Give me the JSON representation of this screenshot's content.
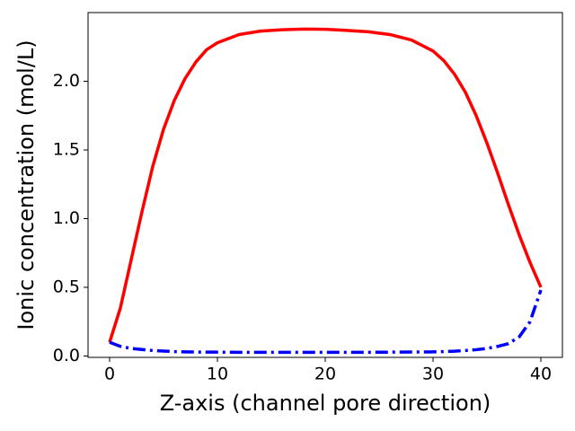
{
  "chart_data": {
    "type": "line",
    "xlabel": "Z-axis (channel pore direction)",
    "ylabel": "Ionic concentration (mol/L)",
    "x": [
      0,
      1,
      2,
      3,
      4,
      5,
      6,
      7,
      8,
      9,
      10,
      12,
      14,
      16,
      18,
      20,
      22,
      24,
      26,
      28,
      30,
      31,
      32,
      33,
      34,
      35,
      36,
      37,
      38,
      39,
      40
    ],
    "series": [
      {
        "color": "#ff0000",
        "linestyle": "solid",
        "values": [
          0.1,
          0.35,
          0.7,
          1.05,
          1.38,
          1.65,
          1.86,
          2.02,
          2.14,
          2.23,
          2.28,
          2.34,
          2.365,
          2.375,
          2.38,
          2.378,
          2.37,
          2.36,
          2.34,
          2.3,
          2.22,
          2.15,
          2.05,
          1.92,
          1.75,
          1.55,
          1.33,
          1.1,
          0.88,
          0.68,
          0.5
        ]
      },
      {
        "color": "#0000ff",
        "linestyle": "dashdot",
        "values": [
          0.1,
          0.07,
          0.055,
          0.047,
          0.04,
          0.036,
          0.032,
          0.03,
          0.029,
          0.028,
          0.028,
          0.027,
          0.027,
          0.027,
          0.027,
          0.027,
          0.027,
          0.027,
          0.028,
          0.029,
          0.03,
          0.032,
          0.035,
          0.04,
          0.046,
          0.055,
          0.07,
          0.09,
          0.14,
          0.25,
          0.48
        ]
      }
    ],
    "xlim": [
      -2,
      42
    ],
    "ylim": [
      -0.01,
      2.5
    ],
    "xticks": [
      0,
      10,
      20,
      30,
      40
    ],
    "yticks": [
      {
        "value": 0,
        "label": "0.0"
      },
      0.5,
      {
        "value": 1,
        "label": "1.0"
      },
      1.5,
      {
        "value": 2,
        "label": "2.0"
      }
    ]
  }
}
